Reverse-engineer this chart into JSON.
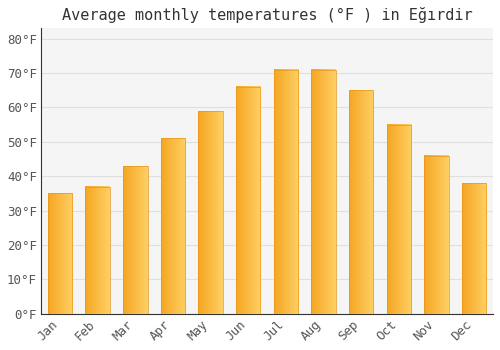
{
  "title": "Average monthly temperatures (°F ) in Eğırdir",
  "months": [
    "Jan",
    "Feb",
    "Mar",
    "Apr",
    "May",
    "Jun",
    "Jul",
    "Aug",
    "Sep",
    "Oct",
    "Nov",
    "Dec"
  ],
  "values": [
    35,
    37,
    43,
    51,
    59,
    66,
    71,
    71,
    65,
    55,
    46,
    38
  ],
  "bar_color_left": "#F5A623",
  "bar_color_right": "#FFD080",
  "ylabel_ticks": [
    "0°F",
    "10°F",
    "20°F",
    "30°F",
    "40°F",
    "50°F",
    "60°F",
    "70°F",
    "80°F"
  ],
  "ytick_values": [
    0,
    10,
    20,
    30,
    40,
    50,
    60,
    70,
    80
  ],
  "ylim": [
    0,
    83
  ],
  "background_color": "#ffffff",
  "plot_bg_color": "#f5f5f5",
  "grid_color": "#e0e0e0",
  "spine_color": "#333333",
  "title_fontsize": 11,
  "tick_fontsize": 9,
  "bar_width": 0.65
}
